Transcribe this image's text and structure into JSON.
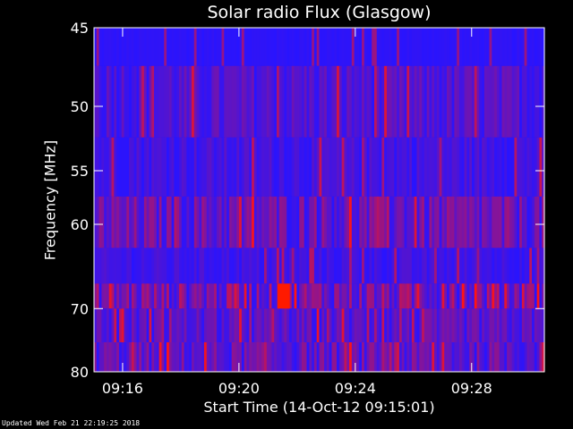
{
  "chart_data": {
    "type": "heatmap",
    "title": "Solar radio Flux (Glasgow)",
    "xlabel": "Start Time (14-Oct-12 09:15:01)",
    "ylabel": "Frequency [MHz]",
    "x_start": "09:15:01",
    "x_end": "09:30:30",
    "x_ticks": [
      "09:16",
      "09:20",
      "09:24",
      "09:28"
    ],
    "y_ticks": [
      45,
      50,
      55,
      60,
      70,
      80
    ],
    "ylim": [
      45,
      80
    ],
    "y_scale": "reciprocal",
    "colors": {
      "background": "#000000",
      "axes": "#ffffff",
      "low": "#1818ff",
      "high": "#ff1a00"
    },
    "notable_burst": {
      "time": "09:21:30",
      "frequency_mhz": [
        66.7,
        70
      ]
    }
  },
  "footer": "Updated Wed Feb 21 22:19:25 2018"
}
